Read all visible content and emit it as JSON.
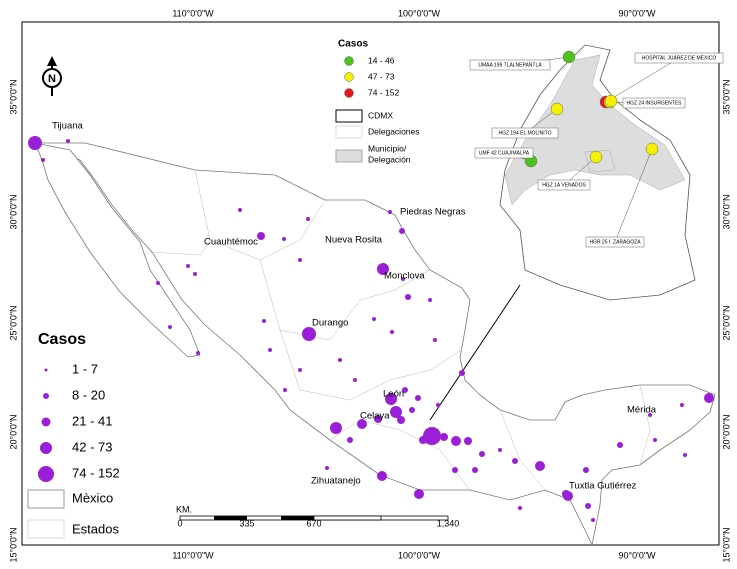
{
  "graticule": {
    "lon": [
      "110°0'0\"W",
      "100°0'0\"W",
      "90°0'0\"W"
    ],
    "lat": [
      "35°0'0\"N",
      "30°0'0\"N",
      "25°0'0\"N",
      "20°0'0\"N",
      "15°0'0\"N"
    ]
  },
  "cities": [
    "Tijuana",
    "Piedras Negras",
    "Cuauhtémoc",
    "Nueva Rosita",
    "Monclova",
    "Durango",
    "León",
    "Celaya",
    "Mérida",
    "Zihuatanejo",
    "Tuxtla Gutiérrez"
  ],
  "legend": {
    "title": "Casos",
    "classes": [
      "1 - 7",
      "8 - 20",
      "21 - 41",
      "42 - 73",
      "74 - 152"
    ],
    "mexico": "Mèxico",
    "estados": "Estados"
  },
  "inset_legend": {
    "title": "Casos",
    "classes": [
      "14 - 46",
      "47 - 73",
      "74 - 152"
    ],
    "cdmx": "CDMX",
    "delegaciones": "Delegaciones",
    "municipio": [
      "Municipio/",
      "Delegación"
    ]
  },
  "inset_tags": [
    "UMAA 199 TLALNEPANTLA",
    "HOSPITAL JUÁREZ DE MÉXICO",
    "HGZ 194 EL MOLINITO",
    "HGZ 24 INSURGENTES",
    "UMF 42 CUAJIMALPA",
    "HGZ 1A VENADOS",
    "HGR 25 I. ZARAGOZA"
  ],
  "scale": {
    "unit": "KM.",
    "labels": [
      "0",
      "335",
      "670",
      "1,340"
    ]
  }
}
